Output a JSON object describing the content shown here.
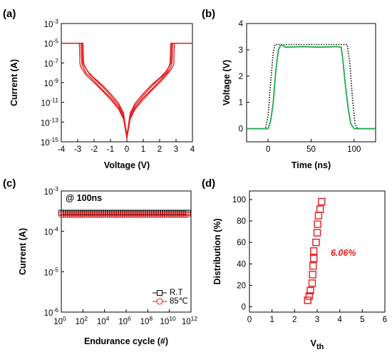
{
  "chart_data": [
    {
      "panel": "(a)",
      "type": "line",
      "xlabel": "Voltage (V)",
      "ylabel": "Current (A)",
      "xlim": [
        -4,
        4
      ],
      "ylim": [
        1e-15,
        0.001
      ],
      "y_scale": "log",
      "x_ticks": [
        "-4",
        "-3",
        "-2",
        "-1",
        "0",
        "1",
        "2",
        "3",
        "4"
      ],
      "y_ticks": [
        {
          "base": "10",
          "exp": "-3"
        },
        {
          "base": "10",
          "exp": "-5"
        },
        {
          "base": "10",
          "exp": "-7"
        },
        {
          "base": "10",
          "exp": "-9"
        },
        {
          "base": "10",
          "exp": "-11"
        },
        {
          "base": "10",
          "exp": "-13"
        },
        {
          "base": "10",
          "exp": "-15"
        }
      ],
      "series": [
        {
          "values": [
            [
              -4,
              1e-05
            ],
            [
              -3.2,
              1e-05
            ],
            [
              -2.8,
              1e-05
            ],
            [
              -2.78,
              1e-06
            ],
            [
              -2.75,
              1e-07
            ],
            [
              -2.7,
              5e-08
            ],
            [
              -2.5,
              1e-08
            ],
            [
              -2,
              1.5e-09
            ],
            [
              -1.5,
              2e-10
            ],
            [
              -1,
              3e-11
            ],
            [
              -0.5,
              3e-12
            ],
            [
              -0.2,
              3e-13
            ],
            [
              0,
              5e-15
            ],
            [
              0.2,
              3e-13
            ],
            [
              0.5,
              3e-12
            ],
            [
              1,
              3e-11
            ],
            [
              1.5,
              2e-10
            ],
            [
              2,
              1.5e-09
            ],
            [
              2.5,
              1.2e-08
            ],
            [
              2.7,
              5e-08
            ],
            [
              2.75,
              1e-07
            ],
            [
              2.78,
              1e-06
            ],
            [
              2.8,
              1e-05
            ],
            [
              3.2,
              1e-05
            ],
            [
              4,
              1e-05
            ]
          ]
        },
        {
          "values": [
            [
              -4,
              1e-05
            ],
            [
              -3.0,
              1e-05
            ],
            [
              -2.68,
              1e-05
            ],
            [
              -2.66,
              1e-06
            ],
            [
              -2.64,
              1.2e-07
            ],
            [
              -2.6,
              6e-08
            ],
            [
              -2.3,
              8e-09
            ],
            [
              -2,
              2.5e-09
            ],
            [
              -1.5,
              4e-10
            ],
            [
              -1,
              5e-11
            ],
            [
              -0.5,
              5e-12
            ],
            [
              -0.2,
              5e-13
            ],
            [
              0,
              3e-15
            ],
            [
              0.2,
              5e-13
            ],
            [
              0.5,
              5e-12
            ],
            [
              1,
              5e-11
            ],
            [
              1.5,
              4e-10
            ],
            [
              2,
              2.5e-09
            ],
            [
              2.4,
              1e-08
            ],
            [
              2.6,
              6e-08
            ],
            [
              2.64,
              1.2e-07
            ],
            [
              2.66,
              1e-06
            ],
            [
              2.68,
              1e-05
            ],
            [
              3.0,
              1e-05
            ],
            [
              4,
              1e-05
            ]
          ]
        },
        {
          "values": [
            [
              -4,
              1e-05
            ],
            [
              -3.3,
              1e-05
            ],
            [
              -2.9,
              1e-05
            ],
            [
              -2.88,
              1e-06
            ],
            [
              -2.86,
              8e-08
            ],
            [
              -2.8,
              4e-08
            ],
            [
              -2.5,
              6e-09
            ],
            [
              -2,
              1e-09
            ],
            [
              -1.5,
              1.5e-10
            ],
            [
              -1,
              2e-11
            ],
            [
              -0.5,
              2e-12
            ],
            [
              -0.2,
              2e-13
            ],
            [
              0,
              2e-15
            ],
            [
              0.2,
              2e-13
            ],
            [
              0.5,
              2e-12
            ],
            [
              1,
              2e-11
            ],
            [
              1.5,
              1.5e-10
            ],
            [
              2,
              1e-09
            ],
            [
              2.5,
              8e-09
            ],
            [
              2.8,
              4e-08
            ],
            [
              2.86,
              8e-08
            ],
            [
              2.88,
              1e-06
            ],
            [
              2.9,
              1e-05
            ],
            [
              3.3,
              1e-05
            ],
            [
              4,
              1e-05
            ]
          ]
        },
        {
          "values": [
            [
              -4,
              1e-05
            ],
            [
              -3.1,
              1e-05
            ],
            [
              -2.73,
              1e-05
            ],
            [
              -2.71,
              1e-06
            ],
            [
              -2.69,
              1e-07
            ],
            [
              -2.6,
              5e-08
            ],
            [
              -2.4,
              1.5e-08
            ],
            [
              -2,
              3e-09
            ],
            [
              -1.5,
              6e-10
            ],
            [
              -1,
              8e-11
            ],
            [
              -0.5,
              8e-12
            ],
            [
              -0.2,
              8e-13
            ],
            [
              0,
              4e-15
            ],
            [
              0.2,
              8e-13
            ],
            [
              0.5,
              8e-12
            ],
            [
              1,
              8e-11
            ],
            [
              1.5,
              6e-10
            ],
            [
              2,
              3e-09
            ],
            [
              2.4,
              1.5e-08
            ],
            [
              2.6,
              5e-08
            ],
            [
              2.69,
              1e-07
            ],
            [
              2.71,
              1e-06
            ],
            [
              2.73,
              1e-05
            ],
            [
              3.1,
              1e-05
            ],
            [
              4,
              1e-05
            ]
          ]
        }
      ]
    },
    {
      "panel": "(b)",
      "type": "line",
      "xlabel": "Time (ns)",
      "ylabel": "Voltage (V)",
      "xlim": [
        -25,
        125
      ],
      "ylim": [
        -0.5,
        4
      ],
      "x_ticks": [
        "0",
        "50",
        "100"
      ],
      "y_ticks": [
        "0",
        "1",
        "2",
        "3",
        "4"
      ],
      "series": [
        {
          "style": "dotted",
          "values": [
            [
              -25,
              0
            ],
            [
              -3,
              0
            ],
            [
              0,
              0.5
            ],
            [
              3,
              1.8
            ],
            [
              6,
              2.9
            ],
            [
              8,
              3.2
            ],
            [
              50,
              3.2
            ],
            [
              92,
              3.2
            ],
            [
              95,
              2.5
            ],
            [
              98,
              1.2
            ],
            [
              101,
              0.2
            ],
            [
              104,
              0
            ],
            [
              125,
              0
            ]
          ]
        },
        {
          "style": "solid",
          "values": [
            [
              -25,
              0
            ],
            [
              0,
              0
            ],
            [
              3,
              0.3
            ],
            [
              6,
              1.0
            ],
            [
              9,
              2.2
            ],
            [
              12,
              3.0
            ],
            [
              15,
              3.2
            ],
            [
              20,
              3.1
            ],
            [
              40,
              3.12
            ],
            [
              60,
              3.1
            ],
            [
              80,
              3.12
            ],
            [
              85,
              3.1
            ],
            [
              87,
              2.6
            ],
            [
              90,
              1.6
            ],
            [
              93,
              0.8
            ],
            [
              96,
              0.2
            ],
            [
              100,
              0
            ],
            [
              125,
              0
            ]
          ]
        }
      ]
    },
    {
      "panel": "(c)",
      "type": "scatter",
      "annotation": "@ 100ns",
      "xlabel": "Endurance cycle (#)",
      "ylabel": "Current (A)",
      "xlim": [
        1,
        1000000000000.0
      ],
      "ylim": [
        1e-06,
        0.001
      ],
      "x_scale": "log",
      "y_scale": "log",
      "x_ticks": [
        {
          "base": "10",
          "exp": "0"
        },
        {
          "base": "10",
          "exp": "2"
        },
        {
          "base": "10",
          "exp": "4"
        },
        {
          "base": "10",
          "exp": "6"
        },
        {
          "base": "10",
          "exp": "8"
        },
        {
          "base": "10",
          "exp": "10"
        },
        {
          "base": "10",
          "exp": "12"
        }
      ],
      "y_ticks": [
        {
          "base": "10",
          "exp": "-3"
        },
        {
          "base": "10",
          "exp": "-4"
        },
        {
          "base": "10",
          "exp": "-5"
        },
        {
          "base": "10",
          "exp": "-6"
        }
      ],
      "legend_position": "bottom-right",
      "series": [
        {
          "name": "R.T",
          "marker": "square",
          "x_range": [
            1,
            500000000000.0
          ],
          "y": 0.00029
        },
        {
          "name": "85℃",
          "marker": "circle",
          "x_range": [
            1,
            500000000000.0
          ],
          "y": 0.00026
        }
      ]
    },
    {
      "panel": "(d)",
      "type": "scatter",
      "xlabel": {
        "base": "V",
        "sub": "th"
      },
      "ylabel": "Distribution (%)",
      "xlim": [
        0,
        6
      ],
      "ylim": [
        -5,
        108
      ],
      "x_ticks": [
        "0",
        "1",
        "2",
        "3",
        "4",
        "5",
        "6"
      ],
      "y_ticks": [
        "0",
        "20",
        "40",
        "60",
        "80",
        "100"
      ],
      "annotation": "6.06%",
      "series": [
        {
          "marker": "square",
          "points": [
            [
              2.58,
              6
            ],
            [
              2.65,
              10
            ],
            [
              2.7,
              15
            ],
            [
              2.78,
              22
            ],
            [
              2.8,
              30
            ],
            [
              2.82,
              38
            ],
            [
              2.85,
              45
            ],
            [
              2.85,
              52
            ],
            [
              2.95,
              60
            ],
            [
              3.0,
              69
            ],
            [
              3.02,
              77
            ],
            [
              3.06,
              85
            ],
            [
              3.13,
              91
            ],
            [
              3.2,
              98
            ]
          ]
        }
      ]
    }
  ]
}
